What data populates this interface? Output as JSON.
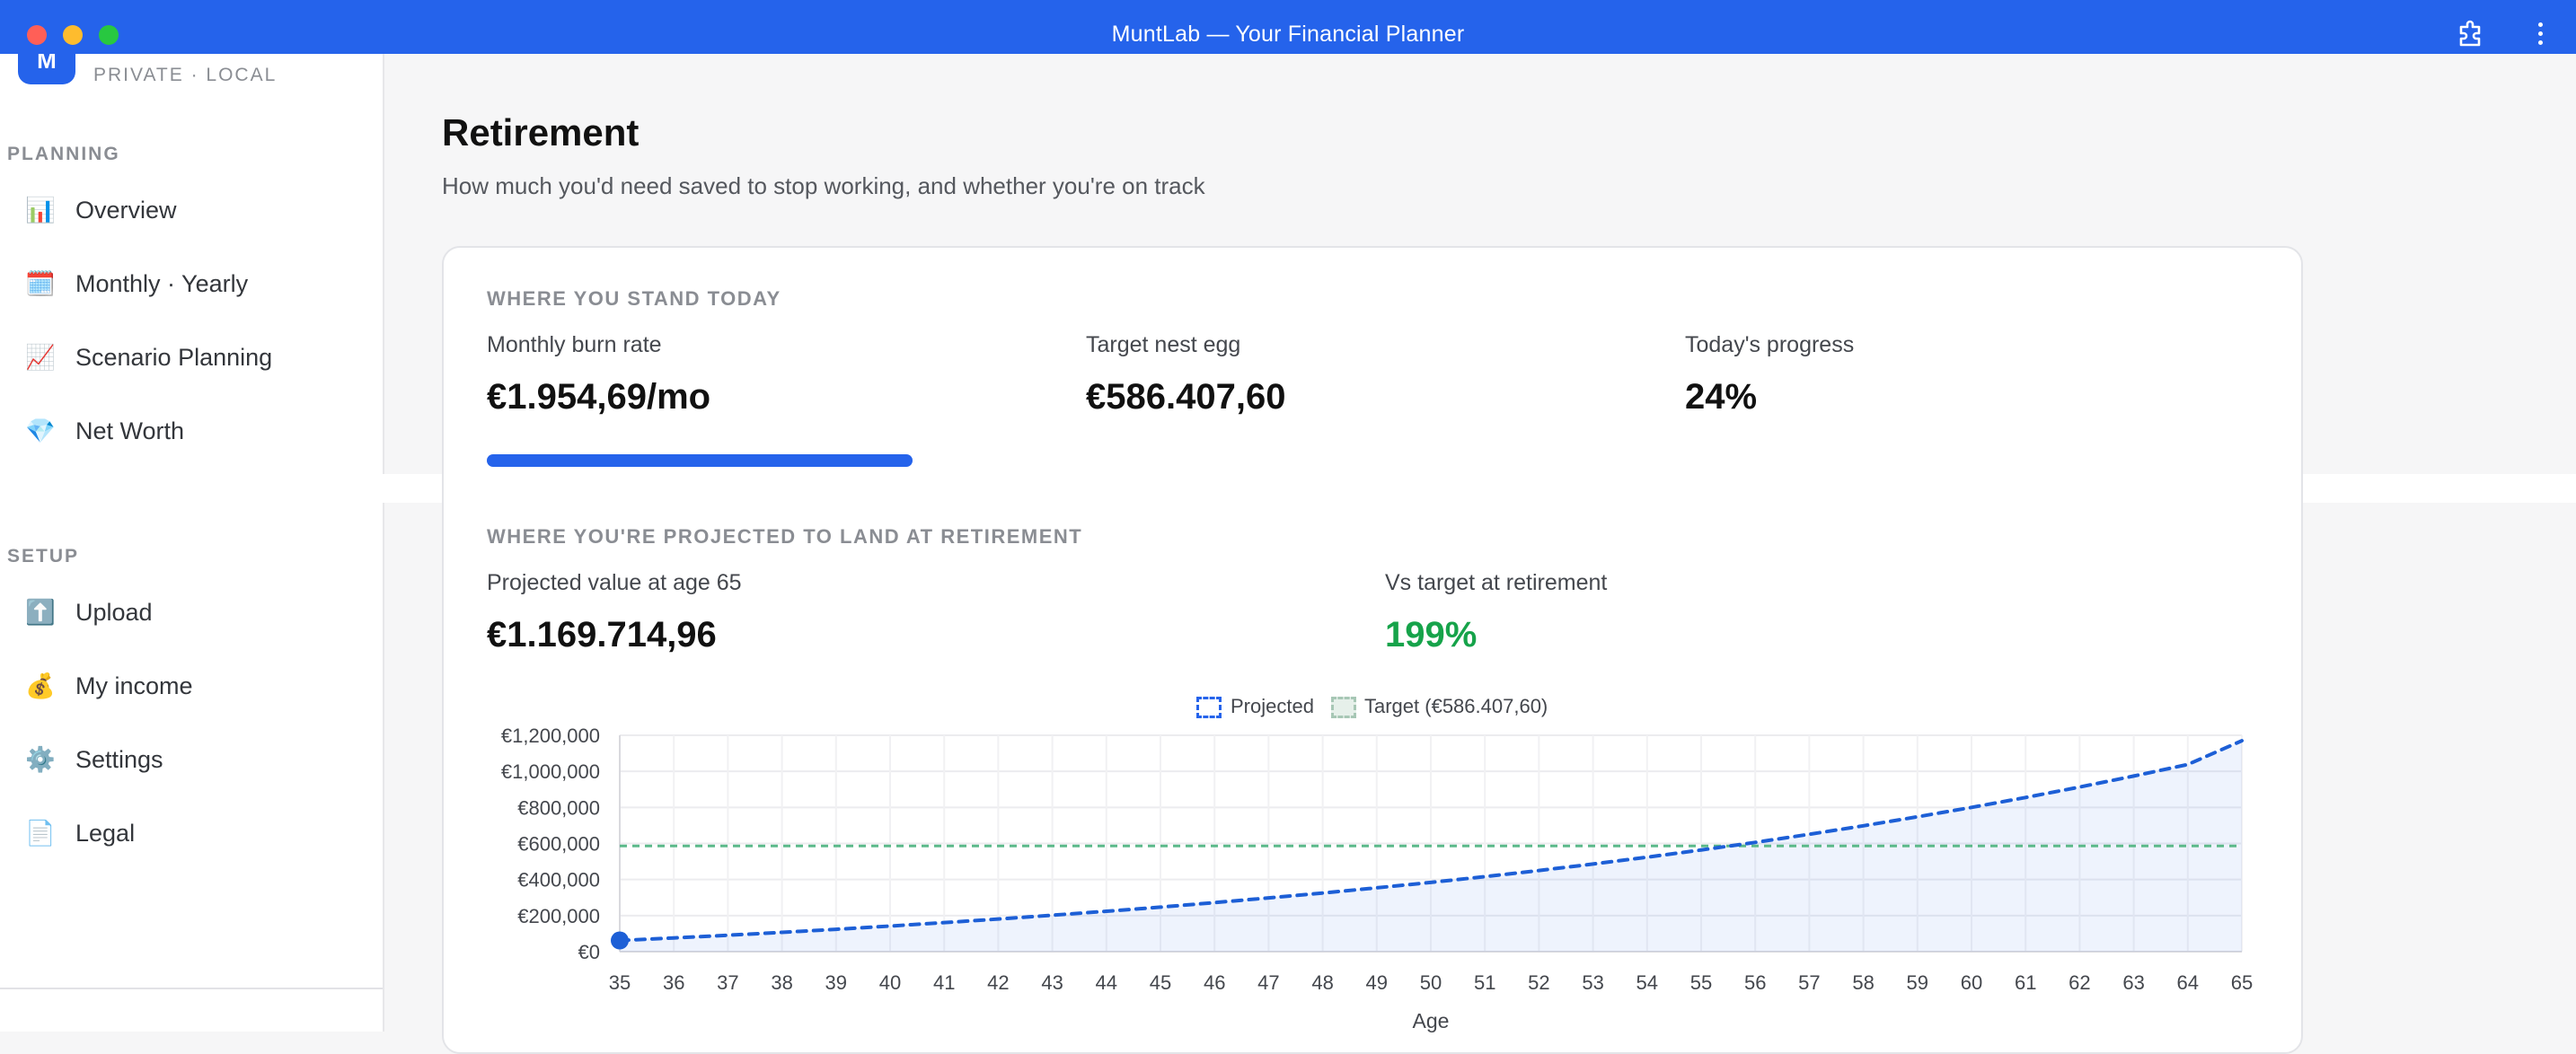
{
  "window": {
    "title": "MuntLab — Your Financial Planner"
  },
  "sidebar": {
    "logo_letter": "M",
    "logo_subtitle": "PRIVATE · LOCAL",
    "planning_heading": "PLANNING",
    "planning_items": [
      {
        "label": "Overview",
        "icon": "bar-chart-icon",
        "glyph": "📊"
      },
      {
        "label": "Monthly · Yearly",
        "icon": "calendar-icon",
        "glyph": "🗓️"
      },
      {
        "label": "Scenario Planning",
        "icon": "trend-chart-icon",
        "glyph": "📈"
      },
      {
        "label": "Net Worth",
        "icon": "gem-icon",
        "glyph": "💎"
      }
    ],
    "setup_heading": "SETUP",
    "setup_items": [
      {
        "label": "Upload",
        "icon": "upload-arrow-icon",
        "glyph": "⬆️"
      },
      {
        "label": "My income",
        "icon": "money-bag-icon",
        "glyph": "💰"
      },
      {
        "label": "Settings",
        "icon": "gear-icon",
        "glyph": "⚙️"
      },
      {
        "label": "Legal",
        "icon": "document-icon",
        "glyph": "📄"
      }
    ]
  },
  "main": {
    "title": "Retirement",
    "subtitle": "How much you'd need saved to stop working, and whether you're on track",
    "today": {
      "section_label": "WHERE YOU STAND TODAY",
      "burn_rate_label": "Monthly burn rate",
      "burn_rate_value": "€1.954,69/mo",
      "target_label": "Target nest egg",
      "target_value": "€586.407,60",
      "progress_label": "Today's progress",
      "progress_value": "24%"
    },
    "projection": {
      "section_label": "WHERE YOU'RE PROJECTED TO LAND AT RETIREMENT",
      "projected_label": "Projected value at age 65",
      "projected_value": "€1.169.714,96",
      "vs_target_label": "Vs target at retirement",
      "vs_target_value": "199%"
    }
  },
  "colors": {
    "accent": "#2563eb",
    "projected_line": "#1d5fd6",
    "target_line": "#5cb98a",
    "positive": "#16a34a"
  },
  "chart_data": {
    "type": "line",
    "xlabel": "Age",
    "ylabel": "",
    "x": [
      35,
      36,
      37,
      38,
      39,
      40,
      41,
      42,
      43,
      44,
      45,
      46,
      47,
      48,
      49,
      50,
      51,
      52,
      53,
      54,
      55,
      56,
      57,
      58,
      59,
      60,
      61,
      62,
      63,
      64,
      65
    ],
    "ylim": [
      0,
      1200000
    ],
    "yticks": [
      "€0",
      "€200,000",
      "€400,000",
      "€600,000",
      "€800,000",
      "€1,000,000",
      "€1,200,000"
    ],
    "ytick_values": [
      0,
      200000,
      400000,
      600000,
      800000,
      1000000,
      1200000
    ],
    "legend": [
      "Projected",
      "Target (€586.407,60)"
    ],
    "legend_position": "top-center",
    "grid": true,
    "series": [
      {
        "name": "Projected",
        "values": [
          62000,
          76000,
          91000,
          107000,
          124000,
          142000,
          161000,
          181000,
          202000,
          224000,
          247000,
          272000,
          298000,
          325000,
          354000,
          384000,
          416000,
          450000,
          486000,
          524000,
          564000,
          606000,
          651000,
          698000,
          748000,
          800000,
          855000,
          913000,
          974000,
          1038000,
          1169715
        ]
      },
      {
        "name": "Target (€586.407,60)",
        "values": [
          586408,
          586408,
          586408,
          586408,
          586408,
          586408,
          586408,
          586408,
          586408,
          586408,
          586408,
          586408,
          586408,
          586408,
          586408,
          586408,
          586408,
          586408,
          586408,
          586408,
          586408,
          586408,
          586408,
          586408,
          586408,
          586408,
          586408,
          586408,
          586408,
          586408,
          586408
        ]
      }
    ]
  }
}
